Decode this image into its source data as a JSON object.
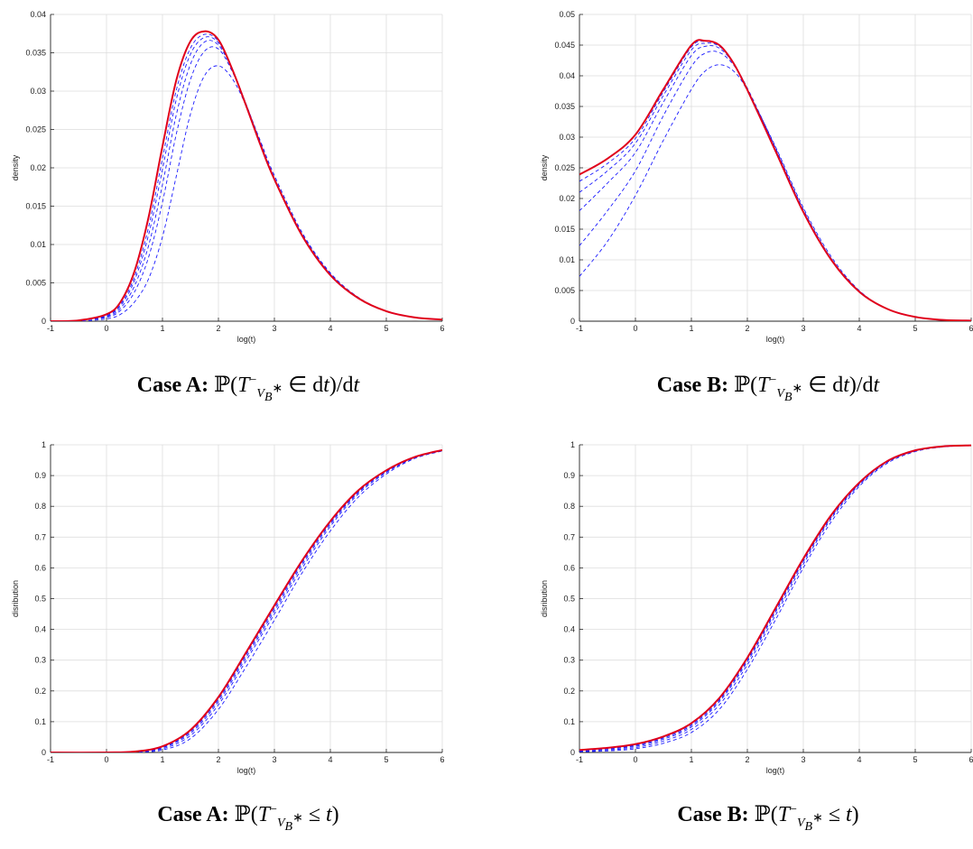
{
  "figure": {
    "captions": [
      {
        "bold": "Case A:",
        "math": "ℙ(T⁻_{V_B*} ∈ dt)/dt"
      },
      {
        "bold": "Case B:",
        "math": "ℙ(T⁻_{V_B*} ∈ dt)/dt"
      },
      {
        "bold": "Case A:",
        "math": "ℙ(T⁻_{V_B*} ≤ t)"
      },
      {
        "bold": "Case B:",
        "math": "ℙ(T⁻_{V_B*} ≤ t)"
      }
    ]
  },
  "chart_data": [
    {
      "type": "line",
      "panel": "top-left",
      "xlabel": "log(t)",
      "ylabel": "density",
      "xlim": [
        -1,
        6
      ],
      "ylim": [
        0,
        0.04
      ],
      "xticks": [
        -1,
        0,
        1,
        2,
        3,
        4,
        5,
        6
      ],
      "yticks": [
        0,
        0.005,
        0.01,
        0.015,
        0.02,
        0.025,
        0.03,
        0.035,
        0.04
      ],
      "ytick_labels": [
        "0",
        "0.005",
        "0.01",
        "0.015",
        "0.02",
        "0.025",
        "0.03",
        "0.035",
        "0.04"
      ],
      "grid": true,
      "colors": {
        "limit": "#e0001b",
        "approx": "#1a1aff"
      },
      "x": [
        -1,
        -0.5,
        0,
        0.25,
        0.5,
        0.75,
        1,
        1.25,
        1.5,
        1.75,
        2,
        2.25,
        2.5,
        2.75,
        3,
        3.5,
        4,
        4.5,
        5,
        5.5,
        6
      ],
      "series": [
        {
          "style": "dashed",
          "values": [
            0,
            0,
            0.0003,
            0.0009,
            0.0025,
            0.0055,
            0.011,
            0.019,
            0.027,
            0.032,
            0.0333,
            0.0316,
            0.028,
            0.0235,
            0.019,
            0.0115,
            0.0063,
            0.0031,
            0.0013,
            0.0005,
            0.0002
          ]
        },
        {
          "style": "dashed",
          "values": [
            0,
            0.0001,
            0.0005,
            0.0014,
            0.0038,
            0.0083,
            0.0155,
            0.0245,
            0.0315,
            0.0352,
            0.0355,
            0.0325,
            0.0282,
            0.0233,
            0.0187,
            0.0113,
            0.0062,
            0.0031,
            0.0013,
            0.0005,
            0.0002
          ]
        },
        {
          "style": "dashed",
          "values": [
            0,
            0.0001,
            0.0006,
            0.0017,
            0.0046,
            0.0098,
            0.0178,
            0.027,
            0.0335,
            0.0364,
            0.036,
            0.0327,
            0.0282,
            0.0232,
            0.0186,
            0.0112,
            0.0061,
            0.003,
            0.0013,
            0.0005,
            0.0002
          ]
        },
        {
          "style": "dashed",
          "values": [
            0,
            0.0001,
            0.0007,
            0.002,
            0.0053,
            0.0112,
            0.0198,
            0.029,
            0.0348,
            0.037,
            0.0363,
            0.0328,
            0.0281,
            0.0231,
            0.0185,
            0.0112,
            0.0061,
            0.003,
            0.0013,
            0.0005,
            0.0002
          ]
        },
        {
          "style": "dashed",
          "values": [
            0,
            0.0001,
            0.0008,
            0.0022,
            0.0058,
            0.0122,
            0.0212,
            0.0302,
            0.0356,
            0.0374,
            0.0365,
            0.0328,
            0.028,
            0.0231,
            0.0185,
            0.0112,
            0.0061,
            0.003,
            0.0013,
            0.0005,
            0.0002
          ]
        },
        {
          "style": "solid",
          "values": [
            0,
            0.0001,
            0.0009,
            0.0025,
            0.0065,
            0.0135,
            0.0228,
            0.0315,
            0.0365,
            0.0378,
            0.0367,
            0.0328,
            0.028,
            0.023,
            0.0185,
            0.0111,
            0.006,
            0.003,
            0.0013,
            0.0005,
            0.0002
          ]
        }
      ]
    },
    {
      "type": "line",
      "panel": "top-right",
      "xlabel": "log(t)",
      "ylabel": "density",
      "xlim": [
        -1,
        6
      ],
      "ylim": [
        0,
        0.05
      ],
      "xticks": [
        -1,
        0,
        1,
        2,
        3,
        4,
        5,
        6
      ],
      "yticks": [
        0,
        0.005,
        0.01,
        0.015,
        0.02,
        0.025,
        0.03,
        0.035,
        0.04,
        0.045,
        0.05
      ],
      "ytick_labels": [
        "0",
        "0.005",
        "0.01",
        "0.015",
        "0.02",
        "0.025",
        "0.03",
        "0.035",
        "0.04",
        "0.045",
        "0.05"
      ],
      "grid": true,
      "colors": {
        "limit": "#e0001b",
        "approx": "#1a1aff"
      },
      "x": [
        -1,
        -0.5,
        0,
        0.5,
        1,
        1.25,
        1.5,
        1.75,
        2,
        2.5,
        3,
        3.5,
        4,
        4.5,
        5,
        5.5,
        6
      ],
      "series": [
        {
          "style": "dashed",
          "values": [
            0.0073,
            0.013,
            0.0205,
            0.0295,
            0.0378,
            0.0408,
            0.0418,
            0.0408,
            0.0376,
            0.0285,
            0.0185,
            0.0105,
            0.005,
            0.002,
            0.0007,
            0.0002,
            0.0001
          ]
        },
        {
          "style": "dashed",
          "values": [
            0.0123,
            0.018,
            0.0245,
            0.0335,
            0.0415,
            0.0437,
            0.0438,
            0.0418,
            0.038,
            0.0283,
            0.0182,
            0.0102,
            0.0049,
            0.002,
            0.0007,
            0.0002,
            0.0001
          ]
        },
        {
          "style": "dashed",
          "values": [
            0.018,
            0.0225,
            0.0275,
            0.0357,
            0.0433,
            0.0448,
            0.0445,
            0.042,
            0.0378,
            0.0281,
            0.018,
            0.0101,
            0.0049,
            0.002,
            0.0007,
            0.0002,
            0.0001
          ]
        },
        {
          "style": "dashed",
          "values": [
            0.021,
            0.0245,
            0.029,
            0.0368,
            0.0442,
            0.0453,
            0.0448,
            0.0421,
            0.0378,
            0.028,
            0.0179,
            0.01,
            0.0048,
            0.002,
            0.0007,
            0.0002,
            0.0001
          ]
        },
        {
          "style": "dashed",
          "values": [
            0.0228,
            0.0257,
            0.0298,
            0.0374,
            0.0447,
            0.0456,
            0.0449,
            0.0421,
            0.0377,
            0.0279,
            0.0178,
            0.01,
            0.0048,
            0.002,
            0.0007,
            0.0002,
            0.0001
          ]
        },
        {
          "style": "solid",
          "values": [
            0.0239,
            0.0265,
            0.0304,
            0.0378,
            0.045,
            0.0457,
            0.045,
            0.0421,
            0.0377,
            0.0278,
            0.0178,
            0.01,
            0.0048,
            0.002,
            0.0007,
            0.0002,
            0.0001
          ]
        }
      ]
    },
    {
      "type": "line",
      "panel": "bottom-left",
      "xlabel": "log(t)",
      "ylabel": "disribution",
      "xlim": [
        -1,
        6
      ],
      "ylim": [
        0,
        1
      ],
      "xticks": [
        -1,
        0,
        1,
        2,
        3,
        4,
        5,
        6
      ],
      "yticks": [
        0,
        0.1,
        0.2,
        0.3,
        0.4,
        0.5,
        0.6,
        0.7,
        0.8,
        0.9,
        1
      ],
      "ytick_labels": [
        "0",
        "0.1",
        "0.2",
        "0.3",
        "0.4",
        "0.5",
        "0.6",
        "0.7",
        "0.8",
        "0.9",
        "1"
      ],
      "grid": true,
      "colors": {
        "limit": "#e0001b",
        "approx": "#1a1aff"
      },
      "x": [
        -1,
        0,
        0.5,
        1,
        1.5,
        2,
        2.5,
        3,
        3.5,
        4,
        4.5,
        5,
        5.5,
        6
      ],
      "series": [
        {
          "style": "dashed",
          "values": [
            0,
            0,
            0.001,
            0.008,
            0.045,
            0.14,
            0.28,
            0.43,
            0.585,
            0.72,
            0.83,
            0.905,
            0.955,
            0.98
          ]
        },
        {
          "style": "dashed",
          "values": [
            0,
            0,
            0.002,
            0.012,
            0.055,
            0.155,
            0.3,
            0.45,
            0.6,
            0.735,
            0.84,
            0.91,
            0.957,
            0.981
          ]
        },
        {
          "style": "dashed",
          "values": [
            0,
            0,
            0.002,
            0.015,
            0.062,
            0.165,
            0.31,
            0.46,
            0.61,
            0.742,
            0.845,
            0.913,
            0.958,
            0.982
          ]
        },
        {
          "style": "dashed",
          "values": [
            0,
            0,
            0.003,
            0.017,
            0.067,
            0.172,
            0.318,
            0.468,
            0.617,
            0.747,
            0.848,
            0.915,
            0.959,
            0.982
          ]
        },
        {
          "style": "dashed",
          "values": [
            0,
            0,
            0.003,
            0.019,
            0.07,
            0.177,
            0.323,
            0.474,
            0.622,
            0.75,
            0.85,
            0.916,
            0.96,
            0.983
          ]
        },
        {
          "style": "solid",
          "values": [
            0,
            0,
            0.003,
            0.02,
            0.073,
            0.18,
            0.327,
            0.478,
            0.625,
            0.752,
            0.852,
            0.917,
            0.96,
            0.983
          ]
        }
      ]
    },
    {
      "type": "line",
      "panel": "bottom-right",
      "xlabel": "log(t)",
      "ylabel": "disribution",
      "xlim": [
        -1,
        6
      ],
      "ylim": [
        0,
        1
      ],
      "xticks": [
        -1,
        0,
        1,
        2,
        3,
        4,
        5,
        6
      ],
      "yticks": [
        0,
        0.1,
        0.2,
        0.3,
        0.4,
        0.5,
        0.6,
        0.7,
        0.8,
        0.9,
        1
      ],
      "ytick_labels": [
        "0",
        "0.1",
        "0.2",
        "0.3",
        "0.4",
        "0.5",
        "0.6",
        "0.7",
        "0.8",
        "0.9",
        "1"
      ],
      "grid": true,
      "colors": {
        "limit": "#e0001b",
        "approx": "#1a1aff"
      },
      "x": [
        -1,
        -0.5,
        0,
        0.5,
        1,
        1.5,
        2,
        2.5,
        3,
        3.5,
        4,
        4.5,
        5,
        5.5,
        6
      ],
      "series": [
        {
          "style": "dashed",
          "values": [
            0.002,
            0.005,
            0.012,
            0.03,
            0.065,
            0.14,
            0.27,
            0.43,
            0.6,
            0.75,
            0.865,
            0.94,
            0.978,
            0.993,
            0.998
          ]
        },
        {
          "style": "dashed",
          "values": [
            0.003,
            0.008,
            0.016,
            0.037,
            0.075,
            0.155,
            0.285,
            0.445,
            0.612,
            0.76,
            0.87,
            0.943,
            0.98,
            0.994,
            0.998
          ]
        },
        {
          "style": "dashed",
          "values": [
            0.005,
            0.011,
            0.02,
            0.043,
            0.083,
            0.165,
            0.295,
            0.455,
            0.62,
            0.765,
            0.873,
            0.945,
            0.981,
            0.994,
            0.998
          ]
        },
        {
          "style": "dashed",
          "values": [
            0.006,
            0.013,
            0.023,
            0.047,
            0.088,
            0.17,
            0.301,
            0.461,
            0.625,
            0.768,
            0.875,
            0.946,
            0.981,
            0.994,
            0.998
          ]
        },
        {
          "style": "dashed",
          "values": [
            0.007,
            0.014,
            0.025,
            0.05,
            0.092,
            0.174,
            0.305,
            0.465,
            0.628,
            0.77,
            0.876,
            0.946,
            0.981,
            0.994,
            0.998
          ]
        },
        {
          "style": "solid",
          "values": [
            0.008,
            0.015,
            0.027,
            0.052,
            0.095,
            0.177,
            0.308,
            0.468,
            0.63,
            0.772,
            0.877,
            0.947,
            0.982,
            0.995,
            0.998
          ]
        }
      ]
    }
  ]
}
